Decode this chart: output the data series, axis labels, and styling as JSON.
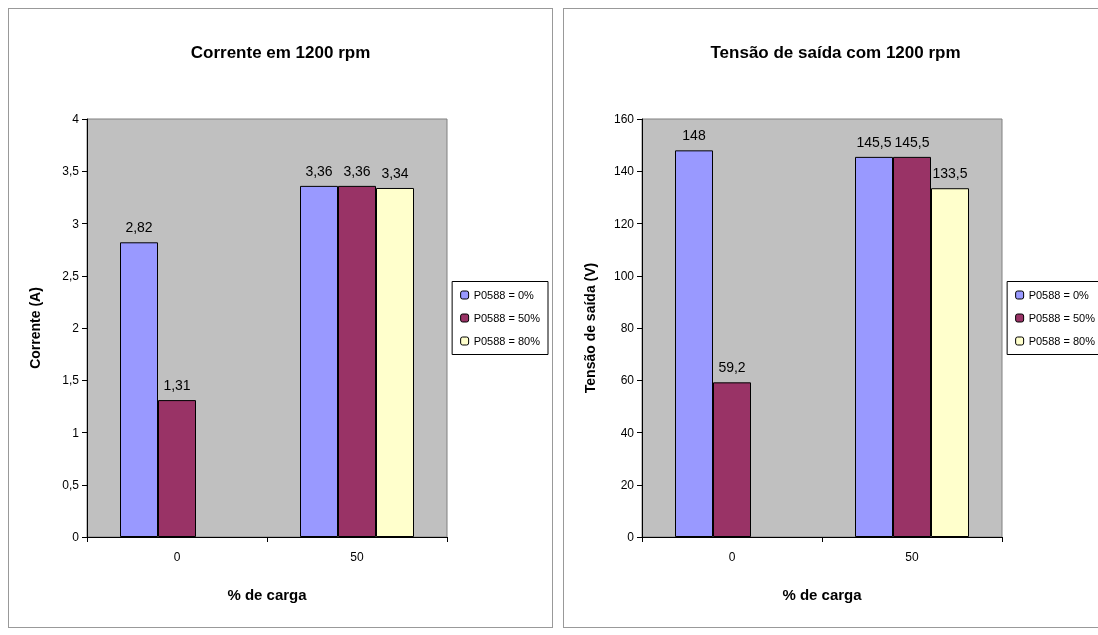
{
  "chart_data": [
    {
      "type": "bar",
      "title": "Corrente em 1200 rpm",
      "xlabel": "% de carga",
      "ylabel": "Corrente (A)",
      "categories": [
        "0",
        "50"
      ],
      "series": [
        {
          "name": "P0588 = 0%",
          "color": "#9999ff",
          "values": [
            2.82,
            3.36
          ],
          "value_labels": [
            "2,82",
            "3,36"
          ]
        },
        {
          "name": "P0588 = 50%",
          "color": "#993366",
          "values": [
            1.31,
            3.36
          ],
          "value_labels": [
            "1,31",
            "3,36"
          ]
        },
        {
          "name": "P0588 = 80%",
          "color": "#ffffcc",
          "values": [
            null,
            3.34
          ],
          "value_labels": [
            null,
            "3,34"
          ]
        }
      ],
      "ylim": [
        0,
        4
      ],
      "yticks": [
        0,
        {
          "value": 0.5,
          "label": "0,5"
        },
        1,
        {
          "value": 1.5,
          "label": "1,5"
        },
        2,
        {
          "value": 2.5,
          "label": "2,5"
        },
        3,
        {
          "value": 3.5,
          "label": "3,5"
        },
        4
      ],
      "grid": false,
      "legend": "right"
    },
    {
      "type": "bar",
      "title": "Tensão de saída com 1200 rpm",
      "xlabel": "% de carga",
      "ylabel": "Tensão de saída (V)",
      "categories": [
        "0",
        "50"
      ],
      "series": [
        {
          "name": "P0588 = 0%",
          "color": "#9999ff",
          "values": [
            148,
            145.5
          ],
          "value_labels": [
            "148",
            "145,5"
          ]
        },
        {
          "name": "P0588 = 50%",
          "color": "#993366",
          "values": [
            59.2,
            145.5
          ],
          "value_labels": [
            "59,2",
            "145,5"
          ]
        },
        {
          "name": "P0588 = 80%",
          "color": "#ffffcc",
          "values": [
            null,
            133.5
          ],
          "value_labels": [
            null,
            "133,5"
          ]
        }
      ],
      "ylim": [
        0,
        160
      ],
      "yticks": [
        0,
        20,
        40,
        60,
        80,
        100,
        120,
        140,
        160
      ],
      "grid": false,
      "legend": "right"
    }
  ]
}
